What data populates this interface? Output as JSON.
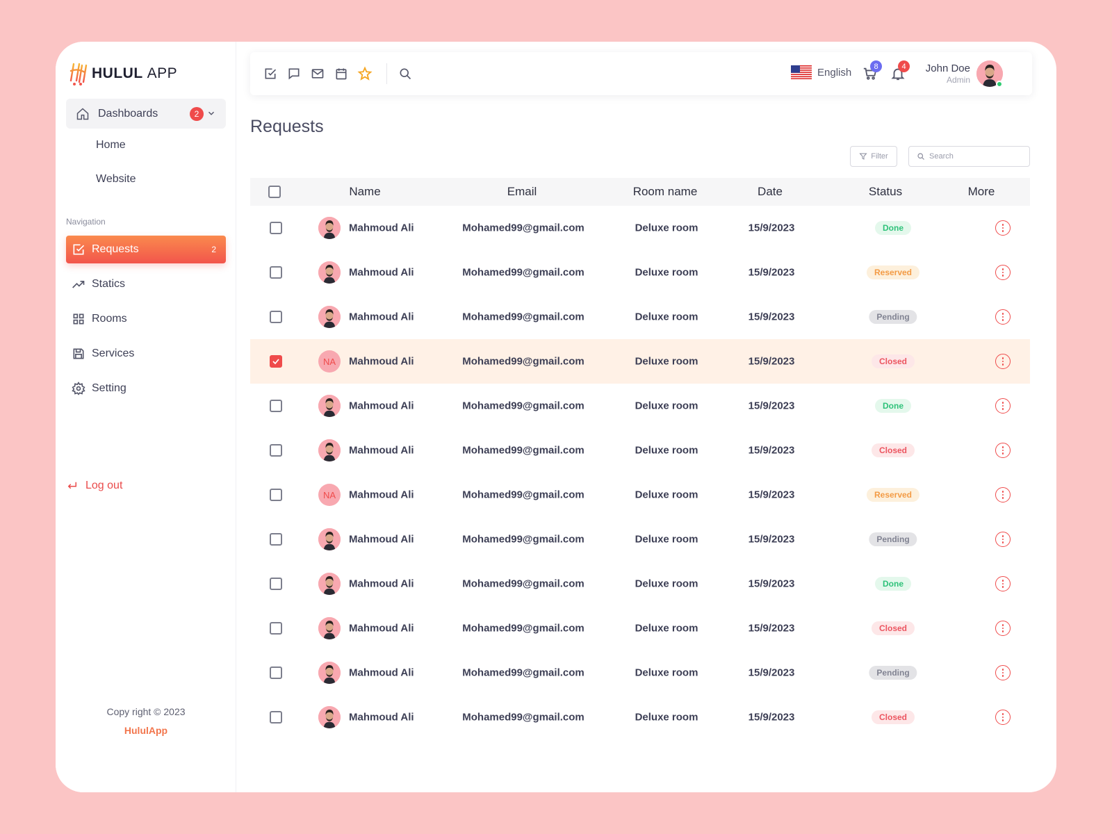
{
  "app": {
    "brand_bold": "HULUL",
    "brand_light": "APP"
  },
  "sidebar": {
    "dashboards_label": "Dashboards",
    "dashboards_badge": "2",
    "sub_items": [
      "Home",
      "Website"
    ],
    "nav_heading": "Navigation",
    "nav_items": [
      {
        "label": "Requests",
        "icon": "check-square-icon",
        "count": "2",
        "active": true
      },
      {
        "label": "Statics",
        "icon": "trending-up-icon"
      },
      {
        "label": "Rooms",
        "icon": "grid-icon"
      },
      {
        "label": "Services",
        "icon": "save-icon"
      },
      {
        "label": "Setting",
        "icon": "gear-icon"
      }
    ],
    "logout_label": "Log out",
    "copyright": "Copy right © 2023",
    "brand_link": "HululApp"
  },
  "topbar": {
    "icons": [
      "check-square-icon",
      "chat-icon",
      "mail-icon",
      "calendar-icon",
      "star-icon",
      "search-icon"
    ],
    "language": "English",
    "cart_badge": "8",
    "notification_badge": "4",
    "user_name": "John Doe",
    "user_role": "Admin"
  },
  "page": {
    "title": "Requests",
    "filter_label": "Filter",
    "search_placeholder": "Search"
  },
  "table": {
    "headers": [
      "Name",
      "Email",
      "Room name",
      "Date",
      "Status",
      "More"
    ],
    "rows": [
      {
        "name": "Mahmoud Ali",
        "email": "Mohamed99@gmail.com",
        "room": "Deluxe room",
        "date": "15/9/2023",
        "status": "Done",
        "avatar": "photo",
        "checked": false
      },
      {
        "name": "Mahmoud Ali",
        "email": "Mohamed99@gmail.com",
        "room": "Deluxe room",
        "date": "15/9/2023",
        "status": "Reserved",
        "avatar": "photo",
        "checked": false
      },
      {
        "name": "Mahmoud Ali",
        "email": "Mohamed99@gmail.com",
        "room": "Deluxe room",
        "date": "15/9/2023",
        "status": "Pending",
        "avatar": "photo",
        "checked": false
      },
      {
        "name": "Mahmoud Ali",
        "email": "Mohamed99@gmail.com",
        "room": "Deluxe room",
        "date": "15/9/2023",
        "status": "Closed",
        "avatar": "NA",
        "checked": true
      },
      {
        "name": "Mahmoud Ali",
        "email": "Mohamed99@gmail.com",
        "room": "Deluxe room",
        "date": "15/9/2023",
        "status": "Done",
        "avatar": "photo",
        "checked": false
      },
      {
        "name": "Mahmoud Ali",
        "email": "Mohamed99@gmail.com",
        "room": "Deluxe room",
        "date": "15/9/2023",
        "status": "Closed",
        "avatar": "photo",
        "checked": false
      },
      {
        "name": "Mahmoud Ali",
        "email": "Mohamed99@gmail.com",
        "room": "Deluxe room",
        "date": "15/9/2023",
        "status": "Reserved",
        "avatar": "NA",
        "checked": false
      },
      {
        "name": "Mahmoud Ali",
        "email": "Mohamed99@gmail.com",
        "room": "Deluxe room",
        "date": "15/9/2023",
        "status": "Pending",
        "avatar": "photo",
        "checked": false
      },
      {
        "name": "Mahmoud Ali",
        "email": "Mohamed99@gmail.com",
        "room": "Deluxe room",
        "date": "15/9/2023",
        "status": "Done",
        "avatar": "photo",
        "checked": false
      },
      {
        "name": "Mahmoud Ali",
        "email": "Mohamed99@gmail.com",
        "room": "Deluxe room",
        "date": "15/9/2023",
        "status": "Closed",
        "avatar": "photo",
        "checked": false
      },
      {
        "name": "Mahmoud Ali",
        "email": "Mohamed99@gmail.com",
        "room": "Deluxe room",
        "date": "15/9/2023",
        "status": "Pending",
        "avatar": "photo",
        "checked": false
      },
      {
        "name": "Mahmoud Ali",
        "email": "Mohamed99@gmail.com",
        "room": "Deluxe room",
        "date": "15/9/2023",
        "status": "Closed",
        "avatar": "photo",
        "checked": false
      }
    ]
  },
  "colors": {
    "accent_start": "#fa8a4d",
    "accent_end": "#f2554c",
    "background": "#fbc5c5",
    "selected_row": "#fff1e6"
  }
}
